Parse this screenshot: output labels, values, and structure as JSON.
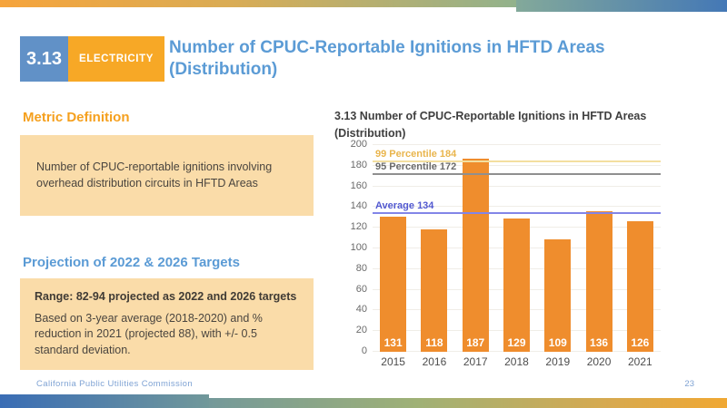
{
  "slide": {
    "badge_number": "3.13",
    "badge_category": "ELECTRICITY",
    "title": "Number of CPUC-Reportable Ignitions in HFTD Areas (Distribution)"
  },
  "metric_definition": {
    "heading": "Metric Definition",
    "body": "Number of CPUC-reportable ignitions involving overhead distribution circuits in HFTD Areas"
  },
  "projection": {
    "heading": "Projection of 2022 & 2026 Targets",
    "range_line": "Range: 82-94 projected as 2022 and 2026 targets",
    "body": "Based on 3-year average (2018-2020) and % reduction in 2021 (projected 88), with +/- 0.5 standard deviation."
  },
  "footer": {
    "organization": "California Public Utilities Commission",
    "page_number": "23"
  },
  "colors": {
    "title_blue": "#5B9BD5",
    "badge_blue": "#6191C7",
    "accent_orange": "#F7A826",
    "heading_orange": "#F5A01E",
    "box_peach": "#FADCA9",
    "footer_blue": "#7FA3D4"
  },
  "chart_data": {
    "type": "bar",
    "title": "3.13 Number of CPUC-Reportable Ignitions in HFTD Areas (Distribution)",
    "categories": [
      "2015",
      "2016",
      "2017",
      "2018",
      "2019",
      "2020",
      "2021"
    ],
    "values": [
      131,
      118,
      187,
      129,
      109,
      136,
      126
    ],
    "xlabel": "",
    "ylabel": "",
    "ylim": [
      0,
      200
    ],
    "ytick_step": 20,
    "grid": true,
    "legend": "none",
    "bar_color": "#EF8D2D",
    "bar_label_color": "#FFFFFF",
    "reference_lines": [
      {
        "label": "99 Percentile 184",
        "value": 184,
        "line_color": "#F3DFA0",
        "label_color": "#E9B54D"
      },
      {
        "label": "95 Percentile 172",
        "value": 172,
        "line_color": "#8F8F8F",
        "label_color": "#6B6B6B"
      },
      {
        "label": "Average 134",
        "value": 134,
        "line_color": "#8285E8",
        "label_color": "#5158D0"
      }
    ]
  }
}
